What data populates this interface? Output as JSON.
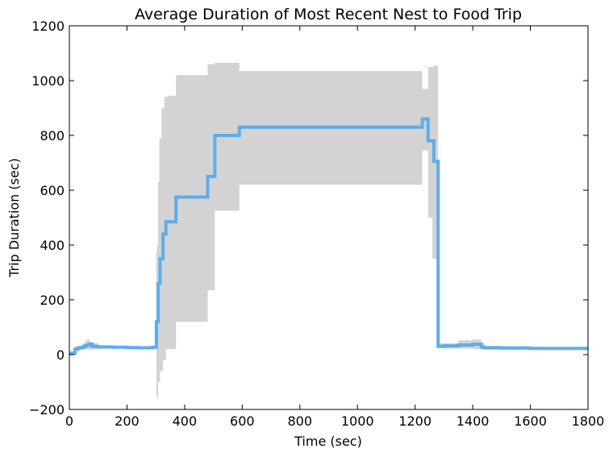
{
  "chart_data": {
    "type": "line",
    "title": "Average Duration of Most Recent Nest to Food Trip",
    "xlabel": "Time (sec)",
    "ylabel": "Trip Duration (sec)",
    "xlim": [
      0,
      1800
    ],
    "ylim": [
      -200,
      1200
    ],
    "xticks": [
      0,
      200,
      400,
      600,
      800,
      1000,
      1200,
      1400,
      1600,
      1800
    ],
    "yticks": [
      -200,
      0,
      200,
      400,
      600,
      800,
      1000,
      1200
    ],
    "grid": false,
    "legend": "none",
    "colors": {
      "line": "#5DADEC",
      "band": "#D3D3D3"
    },
    "series": [
      {
        "kind": "mean",
        "x": [
          0,
          15,
          20,
          30,
          45,
          55,
          60,
          70,
          80,
          100,
          150,
          200,
          240,
          260,
          290,
          300,
          302,
          305,
          308,
          312,
          315,
          320,
          325,
          330,
          335,
          340,
          350,
          360,
          370,
          400,
          440,
          470,
          480,
          500,
          505,
          520,
          560,
          585,
          590,
          1100,
          1220,
          1225,
          1240,
          1245,
          1250,
          1260,
          1265,
          1270,
          1275,
          1280,
          1285,
          1300,
          1350,
          1400,
          1430,
          1440,
          1500,
          1600,
          1700,
          1800
        ],
        "y": [
          5,
          5,
          20,
          25,
          28,
          32,
          35,
          38,
          30,
          28,
          27,
          26,
          25,
          25,
          27,
          27,
          120,
          120,
          260,
          260,
          350,
          350,
          440,
          440,
          485,
          485,
          485,
          485,
          575,
          575,
          575,
          575,
          650,
          650,
          800,
          800,
          800,
          800,
          830,
          830,
          830,
          860,
          860,
          780,
          780,
          780,
          705,
          705,
          705,
          30,
          30,
          32,
          35,
          38,
          28,
          25,
          24,
          23,
          23,
          22
        ]
      },
      {
        "kind": "band",
        "x": [
          0,
          15,
          20,
          30,
          45,
          55,
          60,
          70,
          80,
          100,
          150,
          200,
          240,
          260,
          290,
          300,
          302,
          305,
          308,
          312,
          315,
          320,
          325,
          330,
          335,
          340,
          350,
          360,
          370,
          400,
          440,
          470,
          480,
          500,
          505,
          520,
          560,
          585,
          590,
          1100,
          1220,
          1225,
          1240,
          1245,
          1250,
          1260,
          1265,
          1270,
          1275,
          1280,
          1285,
          1300,
          1350,
          1400,
          1430,
          1440,
          1500,
          1600,
          1700,
          1800
        ],
        "lower": [
          -2,
          -2,
          15,
          18,
          20,
          22,
          20,
          18,
          20,
          22,
          22,
          22,
          22,
          22,
          22,
          22,
          -150,
          -160,
          -100,
          -100,
          -60,
          -60,
          -20,
          -20,
          20,
          20,
          20,
          20,
          120,
          120,
          120,
          120,
          235,
          235,
          525,
          525,
          525,
          525,
          620,
          620,
          620,
          745,
          745,
          500,
          500,
          350,
          350,
          350,
          350,
          25,
          25,
          22,
          22,
          20,
          18,
          18,
          18,
          18,
          18,
          18
        ],
        "upper": [
          12,
          12,
          28,
          32,
          40,
          50,
          55,
          48,
          42,
          34,
          32,
          30,
          28,
          28,
          32,
          32,
          380,
          400,
          630,
          790,
          790,
          900,
          900,
          940,
          940,
          945,
          945,
          945,
          1020,
          1020,
          1020,
          1020,
          1060,
          1060,
          1065,
          1065,
          1065,
          1065,
          1035,
          1035,
          1035,
          970,
          970,
          1050,
          1050,
          1050,
          1055,
          1055,
          1055,
          42,
          42,
          42,
          52,
          55,
          42,
          32,
          30,
          28,
          28,
          26
        ]
      }
    ]
  }
}
